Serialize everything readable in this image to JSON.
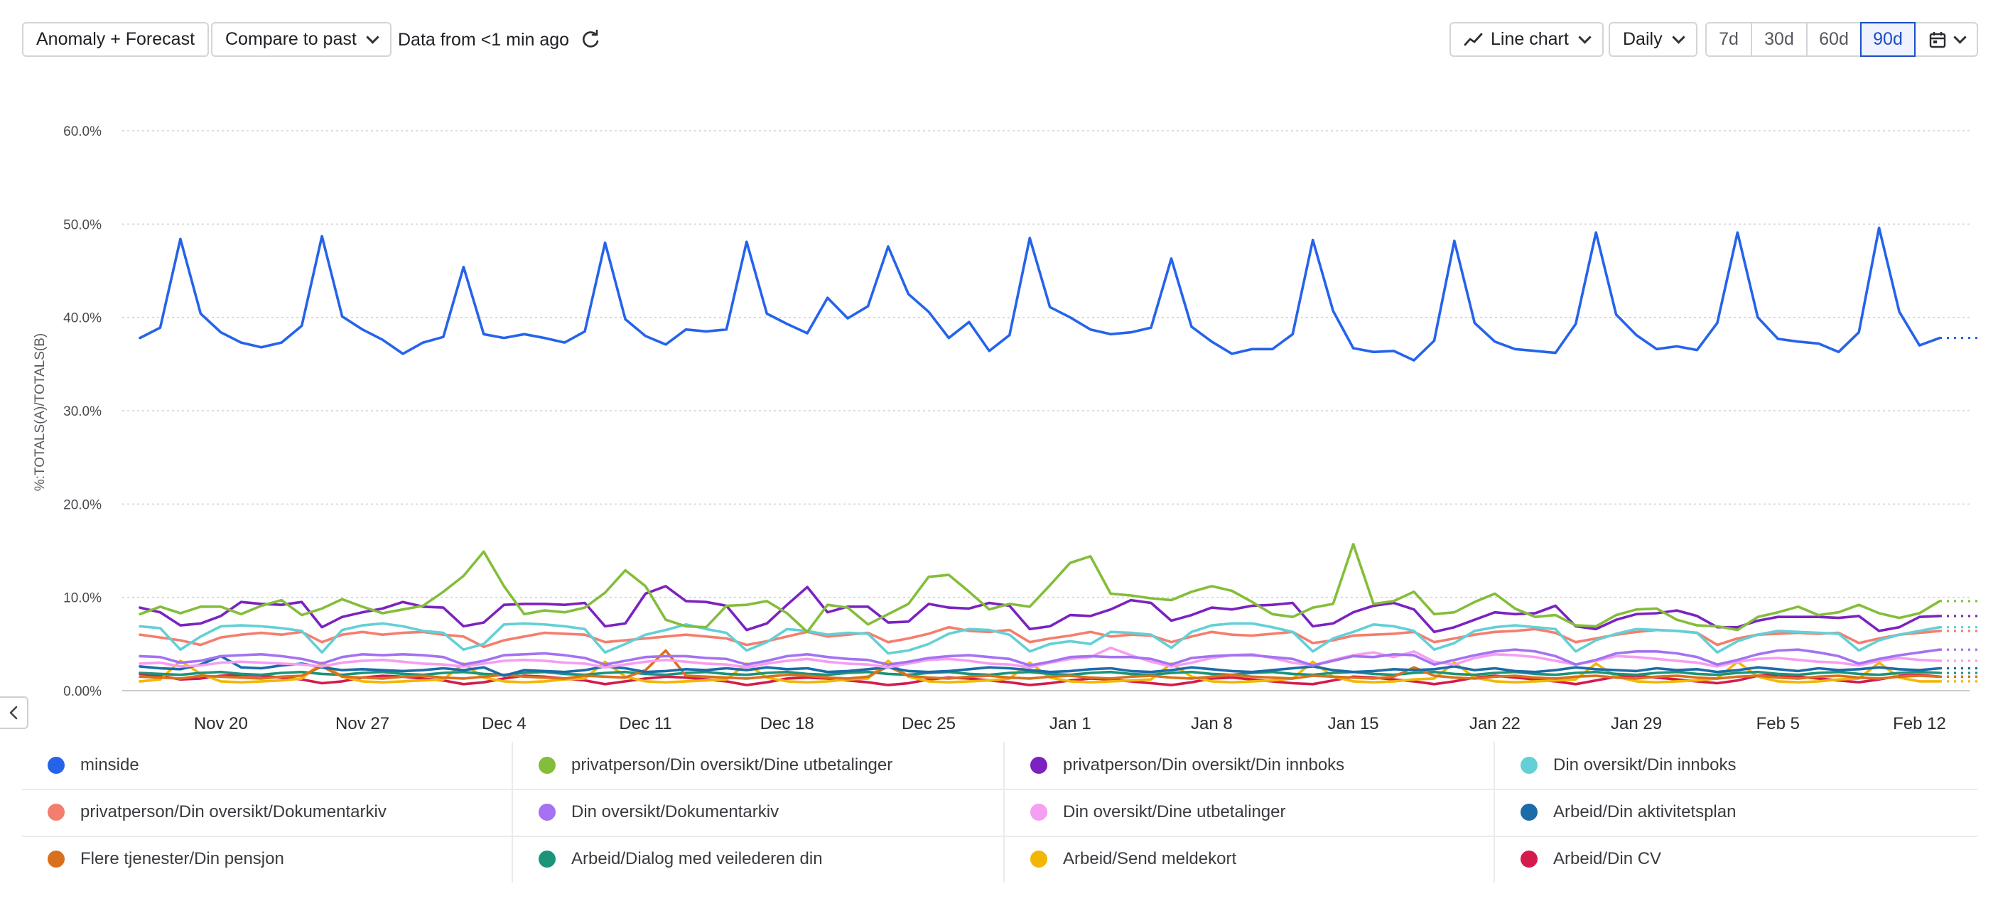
{
  "toolbar": {
    "mode_button": "Anomaly + Forecast",
    "compare_button": "Compare to past",
    "data_freshness": "Data from <1 min ago",
    "chart_type_button": "Line chart",
    "interval_button": "Daily",
    "ranges": [
      "7d",
      "30d",
      "60d",
      "90d"
    ],
    "active_range": "90d",
    "icons": {
      "refresh": "refresh-icon",
      "line_chart": "line-chart-icon",
      "calendar": "calendar-icon",
      "collapse": "chevron-left-icon"
    }
  },
  "chart_data": {
    "type": "line",
    "ylabel": "%:TOTALS(A)/TOTALS(B)",
    "xlabel": "",
    "ylim": [
      0,
      60
    ],
    "yticks": [
      "0.00%",
      "10.0%",
      "20.0%",
      "30.0%",
      "40.0%",
      "50.0%",
      "60.0%"
    ],
    "xticks": [
      "Nov 20",
      "Nov 27",
      "Dec 4",
      "Dec 11",
      "Dec 18",
      "Dec 25",
      "Jan 1",
      "Jan 8",
      "Jan 15",
      "Jan 22",
      "Jan 29",
      "Feb 5",
      "Feb 12"
    ],
    "x_start": "Nov 16",
    "x_end": "Feb 13",
    "grid": true,
    "legend_position": "bottom",
    "series": [
      {
        "name": "minside",
        "color": "#2563eb",
        "values": [
          37.8,
          38.9,
          48.4,
          40.4,
          38.4,
          37.3,
          36.8,
          37.3,
          39.1,
          48.7,
          40.1,
          38.7,
          37.6,
          36.1,
          37.3,
          37.9,
          45.4,
          38.2,
          37.8,
          38.2,
          37.8,
          37.3,
          38.5,
          48.0,
          39.8,
          38.0,
          37.1,
          38.7,
          38.5,
          38.7,
          48.1,
          40.4,
          39.3,
          38.3,
          42.1,
          39.9,
          41.2,
          47.6,
          42.5,
          40.6,
          37.8,
          39.5,
          36.4,
          38.1,
          48.5,
          41.1,
          40.0,
          38.7,
          38.2,
          38.4,
          38.9,
          46.3,
          39.0,
          37.4,
          36.1,
          36.6,
          36.6,
          38.2,
          48.3,
          40.7,
          36.7,
          36.3,
          36.4,
          35.4,
          37.5,
          48.2,
          39.4,
          37.4,
          36.6,
          36.4,
          36.2,
          39.3,
          49.1,
          40.3,
          38.1,
          36.6,
          36.9,
          36.5,
          39.4,
          49.1,
          40.0,
          37.7,
          37.4,
          37.2,
          36.3,
          38.4,
          49.6,
          40.6,
          37.0,
          37.8
        ]
      },
      {
        "name": "privatperson/Din oversikt/Dine utbetalinger",
        "color": "#84bd3a",
        "values": [
          8.2,
          9.0,
          8.3,
          9.0,
          9.0,
          8.2,
          9.1,
          9.7,
          8.1,
          8.8,
          9.8,
          9.0,
          8.3,
          8.7,
          9.1,
          10.6,
          12.3,
          14.9,
          11.2,
          8.2,
          8.6,
          8.4,
          8.9,
          10.5,
          12.9,
          11.2,
          7.6,
          6.9,
          6.8,
          9.1,
          9.2,
          9.6,
          8.3,
          6.3,
          9.2,
          8.9,
          7.1,
          8.2,
          9.3,
          12.2,
          12.4,
          10.6,
          8.7,
          9.3,
          9.0,
          11.3,
          13.7,
          14.4,
          10.4,
          10.2,
          9.9,
          9.7,
          10.6,
          11.2,
          10.7,
          9.5,
          8.2,
          7.9,
          8.9,
          9.3,
          15.7,
          9.3,
          9.6,
          10.6,
          8.2,
          8.4,
          9.5,
          10.4,
          8.8,
          7.9,
          8.1,
          7.0,
          6.9,
          8.1,
          8.7,
          8.8,
          7.6,
          7.0,
          6.9,
          6.5,
          7.9,
          8.4,
          9.0,
          8.1,
          8.4,
          9.2,
          8.3,
          7.8,
          8.3,
          9.6
        ]
      },
      {
        "name": "privatperson/Din oversikt/Din innboks",
        "color": "#7b22c0",
        "values": [
          8.9,
          8.4,
          7.0,
          7.2,
          8.0,
          9.5,
          9.3,
          9.2,
          9.5,
          6.8,
          7.9,
          8.4,
          8.8,
          9.5,
          9.0,
          8.9,
          6.9,
          7.3,
          9.2,
          9.3,
          9.3,
          9.2,
          9.4,
          6.9,
          7.2,
          10.4,
          11.2,
          9.6,
          9.5,
          9.1,
          6.5,
          7.2,
          9.2,
          11.1,
          8.4,
          9.0,
          9.0,
          7.3,
          7.4,
          9.3,
          8.9,
          8.8,
          9.4,
          9.1,
          6.6,
          6.9,
          8.1,
          8.0,
          8.7,
          9.7,
          9.4,
          7.5,
          8.1,
          8.9,
          8.7,
          9.1,
          9.2,
          9.4,
          6.9,
          7.2,
          8.4,
          9.1,
          9.4,
          8.7,
          6.3,
          6.8,
          7.6,
          8.4,
          8.2,
          8.3,
          9.1,
          6.9,
          6.6,
          7.6,
          8.2,
          8.3,
          8.6,
          8.0,
          6.8,
          6.8,
          7.5,
          7.9,
          7.9,
          7.9,
          7.8,
          8.0,
          6.4,
          6.8,
          7.9,
          8.0
        ]
      },
      {
        "name": "Din oversikt/Din innboks",
        "color": "#62d0d6",
        "values": [
          6.9,
          6.7,
          4.4,
          5.8,
          6.9,
          7.0,
          6.9,
          6.7,
          6.4,
          4.1,
          6.5,
          7.0,
          7.2,
          6.9,
          6.4,
          6.2,
          4.4,
          5.0,
          7.1,
          7.2,
          7.1,
          6.9,
          6.6,
          4.1,
          5.0,
          6.0,
          6.5,
          7.1,
          6.6,
          6.2,
          4.3,
          5.2,
          6.6,
          6.4,
          6.0,
          6.2,
          6.1,
          4.0,
          4.3,
          5.0,
          6.1,
          6.6,
          6.5,
          6.0,
          4.2,
          5.0,
          5.3,
          5.0,
          6.3,
          6.2,
          6.0,
          4.6,
          6.3,
          7.0,
          7.2,
          7.2,
          6.8,
          6.3,
          4.2,
          5.6,
          6.3,
          7.1,
          6.9,
          6.4,
          4.4,
          5.1,
          6.4,
          6.8,
          7.0,
          6.8,
          6.6,
          4.2,
          5.4,
          6.1,
          6.6,
          6.5,
          6.4,
          6.2,
          4.1,
          5.3,
          6.0,
          6.4,
          6.3,
          6.2,
          6.1,
          4.3,
          5.4,
          6.0,
          6.4,
          6.8
        ]
      },
      {
        "name": "privatperson/Din oversikt/Dokumentarkiv",
        "color": "#f47e6d",
        "values": [
          6.0,
          5.7,
          5.4,
          4.9,
          5.7,
          6.0,
          6.2,
          6.0,
          6.3,
          5.2,
          6.0,
          6.3,
          6.0,
          6.2,
          6.3,
          6.0,
          5.8,
          4.7,
          5.4,
          5.8,
          6.2,
          6.1,
          6.0,
          5.2,
          5.4,
          5.6,
          5.8,
          6.0,
          5.8,
          5.6,
          4.9,
          5.3,
          5.8,
          6.3,
          5.8,
          6.0,
          6.2,
          5.2,
          5.6,
          6.1,
          6.8,
          6.4,
          6.3,
          6.5,
          5.2,
          5.6,
          5.9,
          6.3,
          5.8,
          6.0,
          5.9,
          5.2,
          5.8,
          6.3,
          6.0,
          5.9,
          6.1,
          6.3,
          5.1,
          5.4,
          5.9,
          6.0,
          6.1,
          6.3,
          5.2,
          5.6,
          6.0,
          6.3,
          6.4,
          6.6,
          6.2,
          5.2,
          5.6,
          6.0,
          6.3,
          6.5,
          6.4,
          6.2,
          4.9,
          5.6,
          6.0,
          6.1,
          6.2,
          6.1,
          6.2,
          5.1,
          5.6,
          6.0,
          6.2,
          6.4
        ]
      },
      {
        "name": "Din oversikt/Dokumentarkiv",
        "color": "#a472f2",
        "values": [
          3.7,
          3.6,
          3.0,
          3.2,
          3.7,
          3.8,
          3.9,
          3.7,
          3.4,
          2.9,
          3.6,
          3.9,
          3.8,
          3.9,
          3.8,
          3.6,
          2.8,
          3.2,
          3.8,
          3.9,
          4.0,
          3.8,
          3.5,
          2.8,
          3.2,
          3.6,
          3.7,
          3.7,
          3.5,
          3.4,
          2.8,
          3.2,
          3.7,
          3.9,
          3.6,
          3.4,
          3.3,
          2.8,
          3.1,
          3.5,
          3.7,
          3.8,
          3.6,
          3.4,
          2.7,
          3.1,
          3.6,
          3.7,
          3.6,
          3.6,
          3.4,
          2.8,
          3.5,
          3.7,
          3.8,
          3.8,
          3.6,
          3.4,
          2.7,
          3.2,
          3.7,
          3.6,
          3.9,
          3.8,
          2.8,
          3.3,
          3.8,
          4.2,
          4.4,
          4.2,
          3.7,
          2.8,
          3.3,
          4.0,
          4.2,
          4.2,
          4.0,
          3.6,
          2.8,
          3.3,
          3.9,
          4.3,
          4.4,
          4.1,
          3.7,
          2.9,
          3.4,
          3.8,
          4.1,
          4.4
        ]
      },
      {
        "name": "Din oversikt/Dine utbetalinger",
        "color": "#f59ef2",
        "values": [
          2.9,
          3.0,
          2.6,
          2.7,
          3.0,
          3.1,
          3.0,
          2.9,
          2.8,
          2.6,
          3.0,
          3.2,
          3.3,
          3.1,
          2.9,
          2.8,
          2.6,
          2.9,
          3.2,
          3.3,
          3.2,
          3.0,
          2.9,
          2.5,
          2.8,
          3.1,
          3.3,
          3.1,
          2.9,
          2.8,
          2.5,
          2.9,
          3.2,
          3.4,
          3.1,
          2.9,
          2.8,
          2.5,
          2.9,
          3.3,
          3.4,
          3.2,
          2.9,
          2.8,
          2.5,
          3.0,
          3.4,
          3.6,
          4.6,
          3.8,
          3.1,
          2.6,
          3.0,
          3.5,
          3.8,
          3.9,
          3.5,
          3.0,
          2.7,
          3.3,
          3.8,
          4.1,
          3.6,
          4.2,
          3.1,
          2.8,
          3.5,
          3.9,
          3.8,
          3.6,
          3.2,
          2.8,
          3.2,
          3.7,
          3.6,
          3.4,
          3.2,
          3.0,
          2.6,
          3.1,
          3.4,
          3.5,
          3.3,
          3.1,
          3.0,
          2.7,
          3.2,
          3.5,
          3.3,
          3.2
        ]
      },
      {
        "name": "Arbeid/Din aktivitetsplan",
        "color": "#1b6ca8",
        "values": [
          2.6,
          2.4,
          2.3,
          2.8,
          3.7,
          2.5,
          2.4,
          2.7,
          2.9,
          2.5,
          2.2,
          2.3,
          2.2,
          2.1,
          2.2,
          2.4,
          2.2,
          2.5,
          1.6,
          2.2,
          2.1,
          2.0,
          2.2,
          2.6,
          2.4,
          2.0,
          2.1,
          2.3,
          2.2,
          2.4,
          2.2,
          2.5,
          2.3,
          2.4,
          2.0,
          2.1,
          2.3,
          2.5,
          2.1,
          2.0,
          2.1,
          2.3,
          2.5,
          2.4,
          2.2,
          2.0,
          2.1,
          2.3,
          2.4,
          2.1,
          2.0,
          2.2,
          2.5,
          2.3,
          2.1,
          2.0,
          2.2,
          2.4,
          2.6,
          2.2,
          2.0,
          2.1,
          2.3,
          2.2,
          2.3,
          2.6,
          2.2,
          2.4,
          2.1,
          2.0,
          2.2,
          2.5,
          2.3,
          2.2,
          2.1,
          2.4,
          2.2,
          2.3,
          2.0,
          2.2,
          2.5,
          2.3,
          2.1,
          2.4,
          2.2,
          2.3,
          2.5,
          2.3,
          2.2,
          2.4
        ]
      },
      {
        "name": "Flere tjenester/Din pensjon",
        "color": "#d9701e",
        "values": [
          1.5,
          1.4,
          1.3,
          1.6,
          1.5,
          1.4,
          1.3,
          1.5,
          1.6,
          2.6,
          1.5,
          1.4,
          1.3,
          1.5,
          1.6,
          1.4,
          1.3,
          1.5,
          1.7,
          1.5,
          1.4,
          1.3,
          1.6,
          1.5,
          1.4,
          2.2,
          4.3,
          1.6,
          1.5,
          1.4,
          1.3,
          1.5,
          1.7,
          1.6,
          1.4,
          1.3,
          1.5,
          2.6,
          1.6,
          1.4,
          1.3,
          1.5,
          1.6,
          1.4,
          1.3,
          1.5,
          1.6,
          1.4,
          1.3,
          1.5,
          1.6,
          1.4,
          1.3,
          1.5,
          1.7,
          1.5,
          1.4,
          1.3,
          1.6,
          1.5,
          1.4,
          1.3,
          1.5,
          2.5,
          1.6,
          1.4,
          1.3,
          1.5,
          1.6,
          1.4,
          1.3,
          1.5,
          1.6,
          1.4,
          1.3,
          1.5,
          1.6,
          1.4,
          1.3,
          1.5,
          1.6,
          1.4,
          1.3,
          1.5,
          1.6,
          1.4,
          1.3,
          1.5,
          1.6,
          1.5
        ]
      },
      {
        "name": "Arbeid/Dialog med veilederen din",
        "color": "#1b9477",
        "values": [
          1.9,
          1.8,
          1.7,
          1.9,
          2.0,
          1.8,
          1.7,
          1.9,
          2.0,
          1.8,
          1.7,
          1.9,
          2.0,
          1.8,
          1.7,
          1.9,
          2.0,
          1.8,
          1.7,
          1.9,
          2.0,
          1.8,
          1.7,
          1.9,
          2.0,
          1.8,
          1.7,
          1.9,
          2.0,
          1.8,
          1.7,
          1.9,
          2.0,
          1.8,
          1.7,
          1.9,
          2.0,
          1.8,
          1.7,
          1.9,
          2.0,
          1.8,
          1.7,
          1.9,
          2.0,
          1.8,
          1.7,
          1.9,
          2.0,
          1.8,
          1.7,
          1.9,
          2.0,
          1.8,
          1.7,
          1.9,
          2.0,
          1.8,
          1.7,
          1.9,
          2.0,
          1.8,
          1.7,
          1.9,
          2.0,
          1.8,
          1.7,
          1.9,
          2.0,
          1.8,
          1.7,
          1.9,
          2.0,
          1.8,
          1.7,
          1.9,
          2.0,
          1.8,
          1.7,
          1.9,
          2.0,
          1.8,
          1.7,
          1.9,
          2.0,
          1.8,
          1.7,
          1.9,
          2.0,
          1.9
        ]
      },
      {
        "name": "Arbeid/Send meldekort",
        "color": "#f2b705",
        "values": [
          1.0,
          1.2,
          3.2,
          1.8,
          1.0,
          0.9,
          1.0,
          1.1,
          1.3,
          3.0,
          1.5,
          1.0,
          0.9,
          1.0,
          1.1,
          1.2,
          2.9,
          1.4,
          1.0,
          0.9,
          1.0,
          1.2,
          1.3,
          3.1,
          1.5,
          1.0,
          0.9,
          1.0,
          1.1,
          1.2,
          2.9,
          1.4,
          1.0,
          0.9,
          1.0,
          1.2,
          1.3,
          3.2,
          1.5,
          1.0,
          0.9,
          1.0,
          1.1,
          1.3,
          3.0,
          1.4,
          1.0,
          0.9,
          1.0,
          1.1,
          1.2,
          2.9,
          1.5,
          1.0,
          0.9,
          1.0,
          1.1,
          1.3,
          3.1,
          1.5,
          1.0,
          0.9,
          1.0,
          1.2,
          1.3,
          3.0,
          1.4,
          1.0,
          0.9,
          1.0,
          1.1,
          1.2,
          2.9,
          1.5,
          1.0,
          0.9,
          1.0,
          1.1,
          1.3,
          3.1,
          1.5,
          1.0,
          0.9,
          1.0,
          1.2,
          1.3,
          3.0,
          1.4,
          1.0,
          1.0
        ]
      },
      {
        "name": "Arbeid/Din CV",
        "color": "#d41c4c",
        "values": [
          1.8,
          1.6,
          1.2,
          1.3,
          1.6,
          1.7,
          1.6,
          1.4,
          1.2,
          0.8,
          1.0,
          1.4,
          1.6,
          1.5,
          1.3,
          1.1,
          0.7,
          0.9,
          1.3,
          1.6,
          1.5,
          1.3,
          1.1,
          0.7,
          1.0,
          1.3,
          1.5,
          1.4,
          1.2,
          1.0,
          0.6,
          0.9,
          1.3,
          1.4,
          1.3,
          1.1,
          0.9,
          0.6,
          0.8,
          1.2,
          1.4,
          1.3,
          1.1,
          0.9,
          0.6,
          0.8,
          1.1,
          1.3,
          1.2,
          1.0,
          0.8,
          0.6,
          0.9,
          1.3,
          1.4,
          1.2,
          1.0,
          0.8,
          0.7,
          1.1,
          1.5,
          1.4,
          1.2,
          1.0,
          0.7,
          1.0,
          1.4,
          1.6,
          1.4,
          1.2,
          1.0,
          0.7,
          1.1,
          1.5,
          1.6,
          1.4,
          1.2,
          1.0,
          0.8,
          1.1,
          1.6,
          1.7,
          1.5,
          1.3,
          1.1,
          0.9,
          1.2,
          1.6,
          1.7,
          1.5
        ]
      }
    ]
  }
}
